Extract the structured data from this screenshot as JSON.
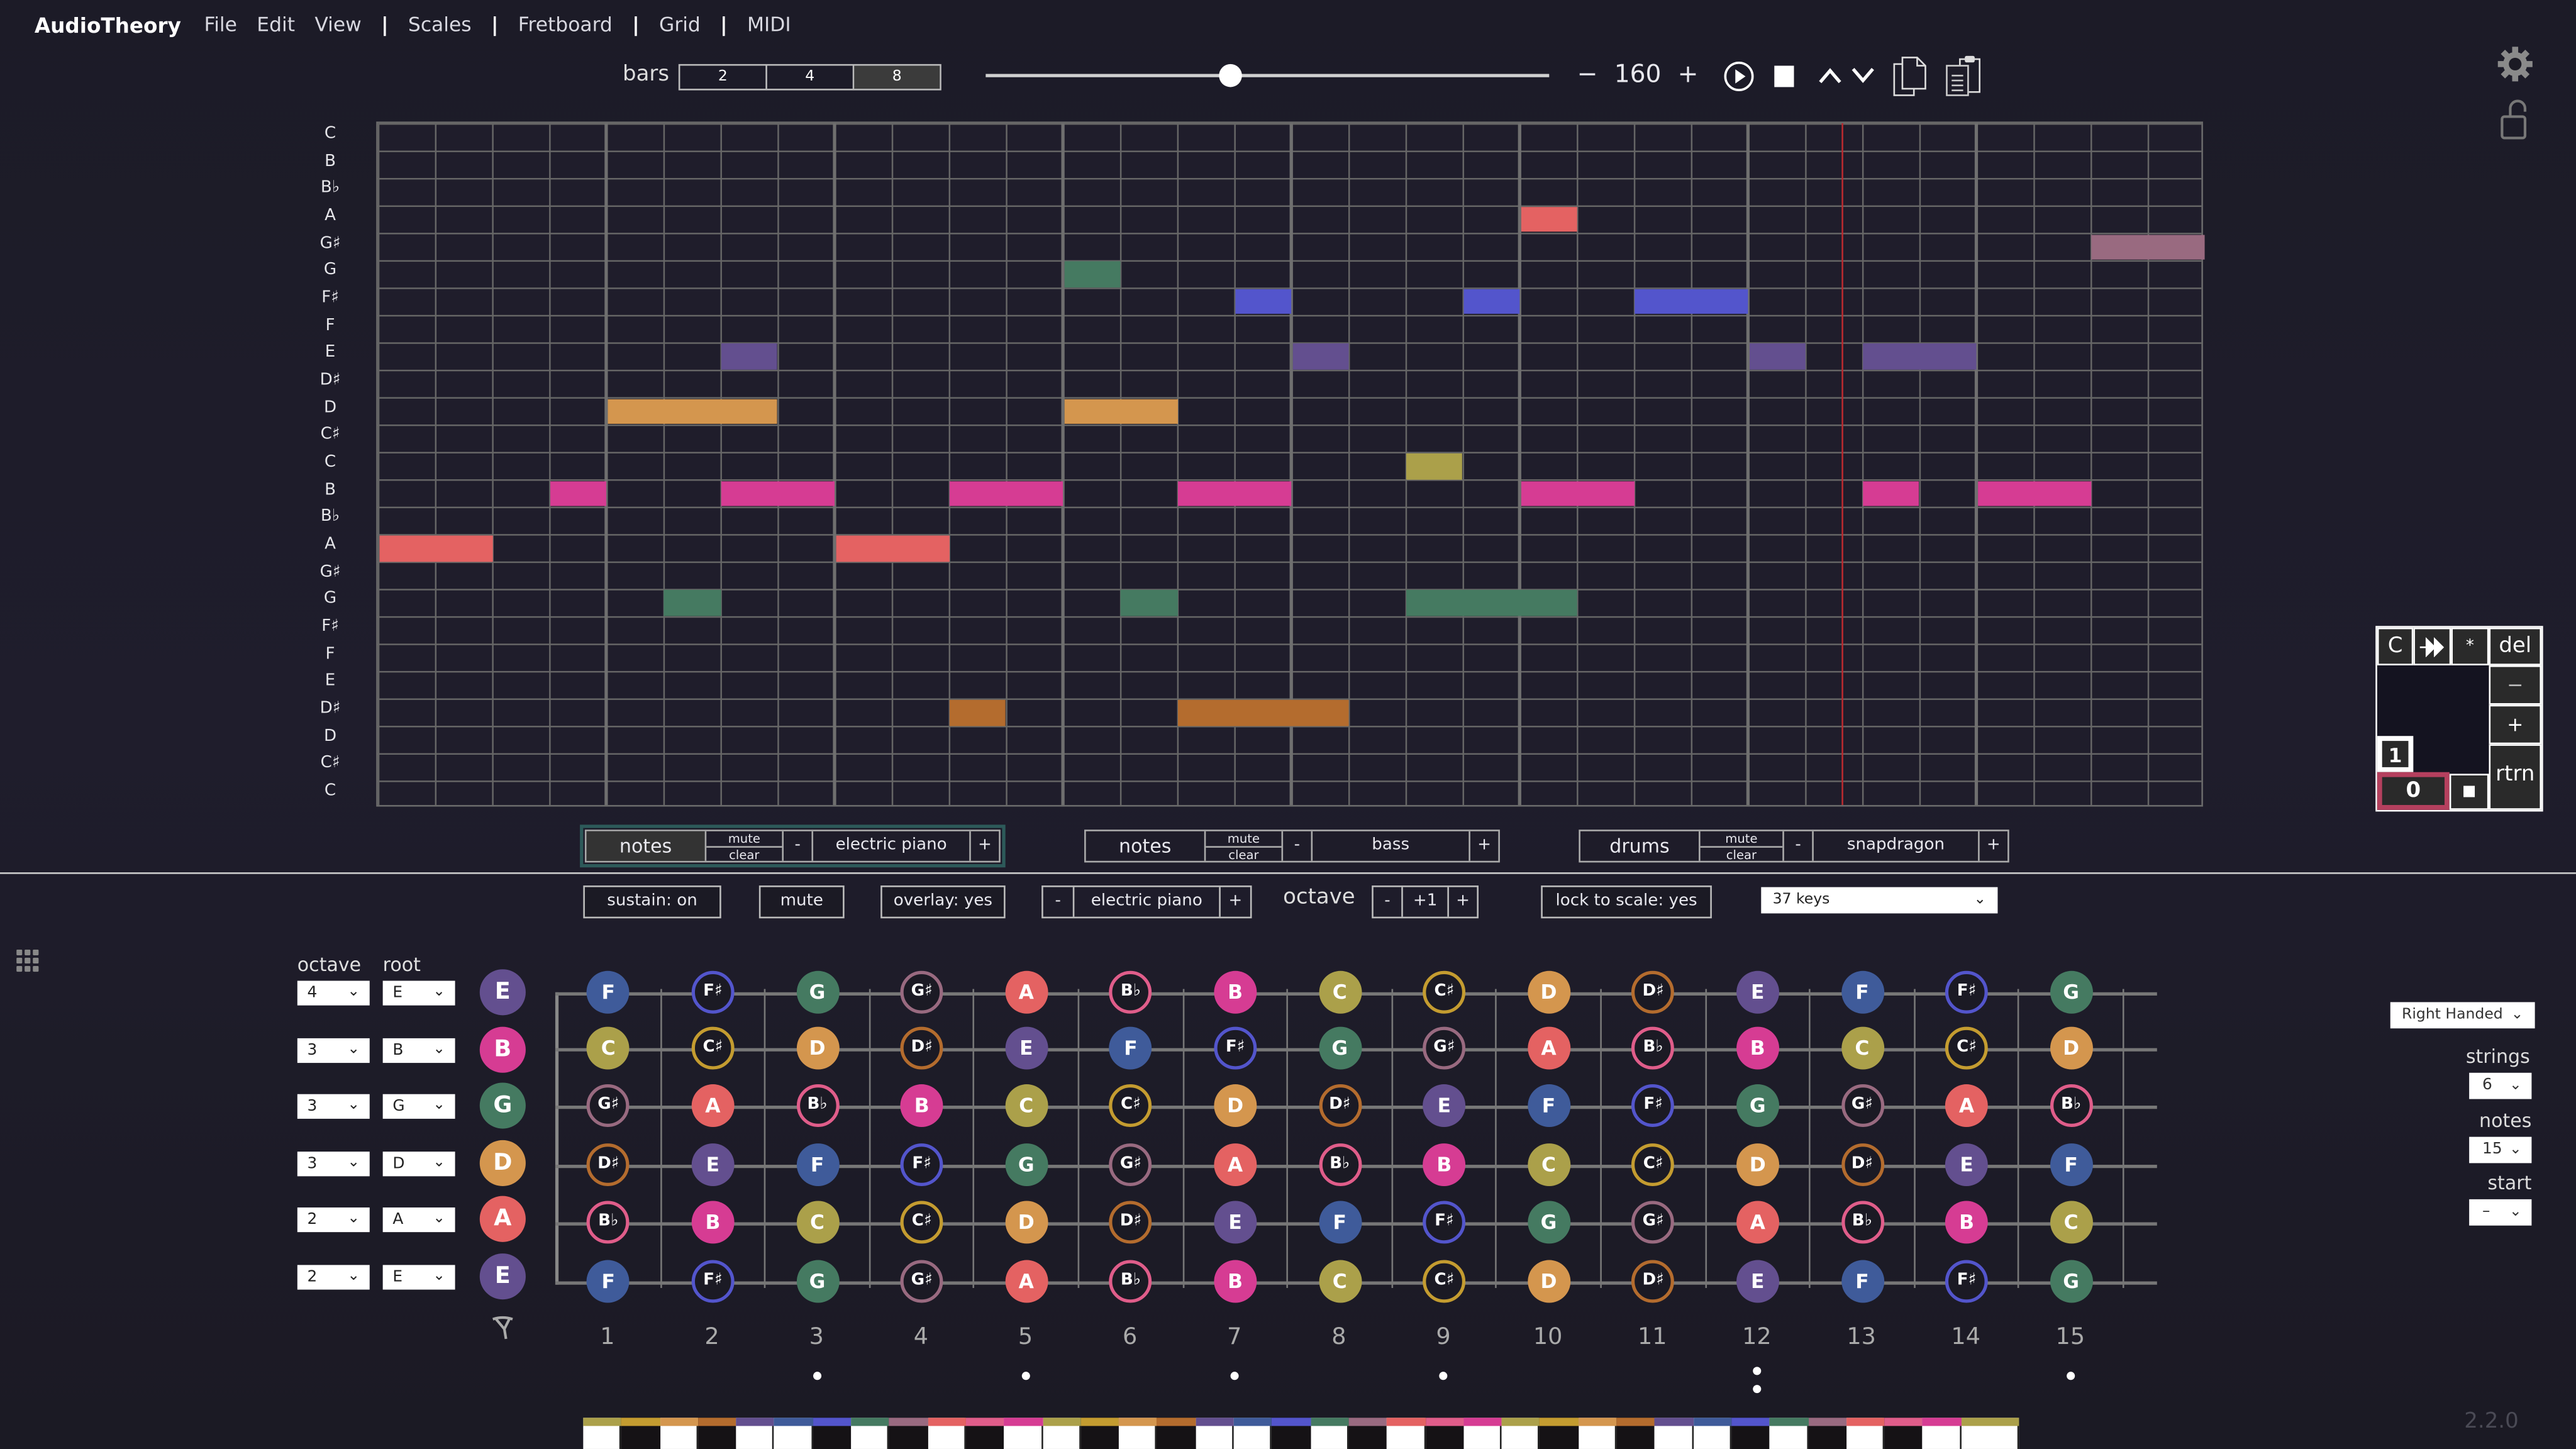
{
  "app": {
    "title": "AudioTheory",
    "version": "2.2.0"
  },
  "menu": {
    "items": [
      "File",
      "Edit",
      "View",
      "Scales",
      "Fretboard",
      "Grid",
      "MIDI"
    ]
  },
  "transport": {
    "bars_label": "bars",
    "bars_options": [
      "2",
      "4",
      "8"
    ],
    "bars_selected": "8",
    "slider_position_pct": 44,
    "tempo_minus": "−",
    "tempo": "160",
    "tempo_plus": "+",
    "icons": [
      "play-icon",
      "stop-icon",
      "octave-up-icon",
      "octave-down-icon",
      "copy-icon",
      "paste-icon"
    ]
  },
  "colors": {
    "C": "#aba04a",
    "C#": "#c49c30",
    "D": "#d4964e",
    "D#": "#b46c2e",
    "E": "#634f8f",
    "F": "#3f5b9a",
    "F#": "#5355cc",
    "G": "#457a61",
    "G#": "#996a80",
    "A": "#e46262",
    "Bb": "#e05d8a",
    "B": "#d63c93"
  },
  "piano_roll": {
    "row_labels": [
      "C",
      "B",
      "B♭",
      "A",
      "G♯",
      "G",
      "F♯",
      "F",
      "E",
      "D♯",
      "D",
      "C♯",
      "C",
      "B",
      "B♭",
      "A",
      "G♯",
      "G",
      "F♯",
      "F",
      "E",
      "D♯",
      "D",
      "C♯",
      "C"
    ],
    "columns": 32,
    "beats_per_bar": 4,
    "playhead_col": 25.65,
    "notes": [
      {
        "row": 15,
        "col": 0,
        "len": 2,
        "pitch": "A"
      },
      {
        "row": 15,
        "col": 8,
        "len": 2,
        "pitch": "A"
      },
      {
        "row": 13,
        "col": 3,
        "len": 1,
        "pitch": "B"
      },
      {
        "row": 13,
        "col": 6,
        "len": 2,
        "pitch": "B"
      },
      {
        "row": 13,
        "col": 10,
        "len": 2,
        "pitch": "B"
      },
      {
        "row": 13,
        "col": 14,
        "len": 2,
        "pitch": "B"
      },
      {
        "row": 13,
        "col": 20,
        "len": 2,
        "pitch": "B"
      },
      {
        "row": 13,
        "col": 26,
        "len": 1,
        "pitch": "B"
      },
      {
        "row": 13,
        "col": 28,
        "len": 2,
        "pitch": "B"
      },
      {
        "row": 10,
        "col": 4,
        "len": 3,
        "pitch": "D"
      },
      {
        "row": 10,
        "col": 12,
        "len": 2,
        "pitch": "D"
      },
      {
        "row": 8,
        "col": 6,
        "len": 1,
        "pitch": "E"
      },
      {
        "row": 8,
        "col": 16,
        "len": 1,
        "pitch": "E"
      },
      {
        "row": 8,
        "col": 24,
        "len": 1,
        "pitch": "E"
      },
      {
        "row": 8,
        "col": 26,
        "len": 2,
        "pitch": "E"
      },
      {
        "row": 5,
        "col": 12,
        "len": 1,
        "pitch": "G"
      },
      {
        "row": 6,
        "col": 15,
        "len": 1,
        "pitch": "F#"
      },
      {
        "row": 6,
        "col": 19,
        "len": 1,
        "pitch": "F#"
      },
      {
        "row": 6,
        "col": 22,
        "len": 2,
        "pitch": "F#"
      },
      {
        "row": 3,
        "col": 20,
        "len": 1,
        "pitch": "A"
      },
      {
        "row": 4,
        "col": 30,
        "len": 2,
        "pitch": "G#"
      },
      {
        "row": 12,
        "col": 18,
        "len": 1,
        "pitch": "C"
      },
      {
        "row": 17,
        "col": 5,
        "len": 1,
        "pitch": "G"
      },
      {
        "row": 17,
        "col": 13,
        "len": 1,
        "pitch": "G"
      },
      {
        "row": 17,
        "col": 18,
        "len": 3,
        "pitch": "G"
      },
      {
        "row": 21,
        "col": 10,
        "len": 1,
        "pitch": "D#"
      },
      {
        "row": 21,
        "col": 14,
        "len": 3,
        "pitch": "D#"
      }
    ]
  },
  "tracks": [
    {
      "kind": "notes",
      "mute": "mute",
      "clear": "clear",
      "minus": "-",
      "instrument": "electric piano",
      "plus": "+",
      "active": true
    },
    {
      "kind": "notes",
      "mute": "mute",
      "clear": "clear",
      "minus": "-",
      "instrument": "bass",
      "plus": "+",
      "active": false
    },
    {
      "kind": "drums",
      "mute": "mute",
      "clear": "clear",
      "minus": "-",
      "instrument": "snapdragon",
      "plus": "+",
      "active": false
    }
  ],
  "controls": {
    "sustain": "sustain: on",
    "mute": "mute",
    "overlay": "overlay: yes",
    "inst_minus": "-",
    "instrument": "electric piano",
    "inst_plus": "+",
    "octave_label": "octave",
    "octave_minus": "-",
    "octave_value": "+1",
    "octave_plus": "+",
    "lock_to_scale": "lock to scale: yes",
    "keys_select": "37 keys"
  },
  "keypad": {
    "clear": "C",
    "advance": "⯮",
    "star": "*",
    "del": "del",
    "minus": "−",
    "plus": "+",
    "rtrn": "rtrn",
    "length_value": "1",
    "input_value": "0",
    "stop": "■"
  },
  "fretboard": {
    "octave_header": "octave",
    "root_header": "root",
    "strings": [
      {
        "octave": "4",
        "root": "E",
        "open": "E",
        "notes": [
          "F",
          "F♯",
          "G",
          "G♯",
          "A",
          "B♭",
          "B",
          "C",
          "C♯",
          "D",
          "D♯",
          "E",
          "F",
          "F♯",
          "G"
        ]
      },
      {
        "octave": "3",
        "root": "B",
        "open": "B",
        "notes": [
          "C",
          "C♯",
          "D",
          "D♯",
          "E",
          "F",
          "F♯",
          "G",
          "G♯",
          "A",
          "B♭",
          "B",
          "C",
          "C♯",
          "D"
        ]
      },
      {
        "octave": "3",
        "root": "G",
        "open": "G",
        "notes": [
          "G♯",
          "A",
          "B♭",
          "B",
          "C",
          "C♯",
          "D",
          "D♯",
          "E",
          "F",
          "F♯",
          "G",
          "G♯",
          "A",
          "B♭"
        ]
      },
      {
        "octave": "3",
        "root": "D",
        "open": "D",
        "notes": [
          "D♯",
          "E",
          "F",
          "F♯",
          "G",
          "G♯",
          "A",
          "B♭",
          "B",
          "C",
          "C♯",
          "D",
          "D♯",
          "E",
          "F"
        ]
      },
      {
        "octave": "2",
        "root": "A",
        "open": "A",
        "notes": [
          "B♭",
          "B",
          "C",
          "C♯",
          "D",
          "D♯",
          "E",
          "F",
          "F♯",
          "G",
          "G♯",
          "A",
          "B♭",
          "B",
          "C"
        ]
      },
      {
        "octave": "2",
        "root": "E",
        "open": "E",
        "notes": [
          "F",
          "F♯",
          "G",
          "G♯",
          "A",
          "B♭",
          "B",
          "C",
          "C♯",
          "D",
          "D♯",
          "E",
          "F",
          "F♯",
          "G"
        ]
      }
    ],
    "fret_numbers": [
      "1",
      "2",
      "3",
      "4",
      "5",
      "6",
      "7",
      "8",
      "9",
      "10",
      "11",
      "12",
      "13",
      "14",
      "15"
    ],
    "inlay_frets": [
      3,
      5,
      7,
      9,
      12,
      15
    ],
    "double_inlay_frets": [
      12
    ]
  },
  "settings": {
    "handedness": "Right Handed",
    "strings_label": "strings",
    "strings_value": "6",
    "notes_label": "notes",
    "notes_value": "15",
    "start_label": "start",
    "start_value": "–"
  },
  "piano": {
    "keys": 37,
    "start_note": "C"
  }
}
